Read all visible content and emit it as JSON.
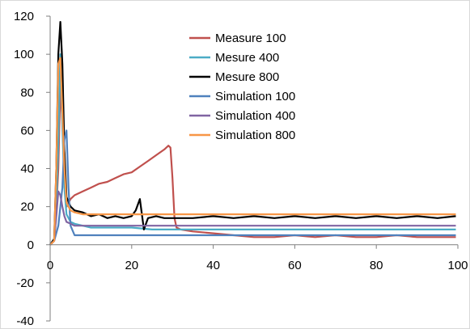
{
  "chart_data": {
    "type": "line",
    "xlim": [
      0,
      100
    ],
    "ylim": [
      -40,
      120
    ],
    "x_ticks": [
      "0",
      "20",
      "40",
      "60",
      "80",
      "100"
    ],
    "y_ticks": [
      "-40",
      "-20",
      "0",
      "20",
      "40",
      "60",
      "80",
      "100",
      "120"
    ],
    "grid": false,
    "legend_position": "inside-top-center",
    "series": [
      {
        "name": "Measure 100",
        "color": "#c0504d",
        "x": [
          0,
          1,
          1.5,
          2,
          2.5,
          3,
          3.5,
          4,
          5,
          6,
          8,
          10,
          12,
          14,
          16,
          18,
          20,
          22,
          24,
          26,
          28,
          29,
          29.5,
          30,
          30.5,
          31,
          32,
          35,
          40,
          45,
          50,
          55,
          60,
          65,
          70,
          75,
          80,
          85,
          90,
          95,
          99.5
        ],
        "y": [
          0,
          3,
          18,
          40,
          83,
          65,
          35,
          20,
          24,
          26,
          28,
          30,
          32,
          33,
          35,
          37,
          38,
          41,
          44,
          47,
          50,
          52,
          51,
          35,
          14,
          9,
          8,
          7,
          6,
          5,
          4,
          4,
          5,
          4,
          5,
          4,
          4,
          5,
          4,
          4,
          4
        ]
      },
      {
        "name": "Mesure 400",
        "color": "#4bacc6",
        "x": [
          0,
          1,
          1.5,
          2,
          2.5,
          3,
          3.5,
          4,
          5,
          6,
          8,
          10,
          15,
          20,
          25,
          30,
          35,
          40,
          45,
          50,
          55,
          60,
          65,
          70,
          75,
          80,
          85,
          90,
          95,
          99.5
        ],
        "y": [
          0,
          3,
          20,
          55,
          100,
          62,
          30,
          16,
          12,
          11,
          10,
          9,
          9,
          9,
          8,
          8,
          8,
          8,
          8,
          8,
          8,
          8,
          8,
          8,
          8,
          8,
          8,
          8,
          8,
          8
        ]
      },
      {
        "name": "Mesure 800",
        "color": "#000000",
        "x": [
          0,
          1,
          1.5,
          2,
          2.5,
          3,
          3.5,
          4,
          5,
          6,
          8,
          10,
          12,
          14,
          16,
          18,
          20,
          21,
          22,
          23,
          24,
          26,
          28,
          30,
          35,
          40,
          45,
          50,
          55,
          60,
          65,
          70,
          75,
          80,
          85,
          90,
          95,
          99.5
        ],
        "y": [
          0,
          3,
          40,
          100,
          117,
          95,
          50,
          25,
          20,
          18,
          17,
          15,
          16,
          14,
          15,
          14,
          15,
          18,
          24,
          8,
          14,
          15,
          14,
          14,
          14,
          15,
          14,
          15,
          14,
          15,
          14,
          15,
          14,
          15,
          14,
          15,
          14,
          15
        ]
      },
      {
        "name": "Simulation 100",
        "color": "#4f81bd",
        "x": [
          0,
          1,
          2,
          3,
          3.5,
          4,
          4.5,
          5,
          6,
          10,
          20,
          30,
          40,
          50,
          60,
          70,
          80,
          90,
          99.5
        ],
        "y": [
          0,
          2,
          10,
          30,
          55,
          60,
          30,
          10,
          5,
          5,
          5,
          5,
          5,
          5,
          5,
          5,
          5,
          5,
          5
        ]
      },
      {
        "name": "Simulation 400",
        "color": "#8064a2",
        "x": [
          0,
          1,
          1.5,
          2,
          2.5,
          3,
          3.5,
          4,
          5,
          6,
          8,
          10,
          20,
          30,
          40,
          50,
          60,
          70,
          80,
          90,
          99.5
        ],
        "y": [
          0,
          2,
          15,
          28,
          26,
          20,
          15,
          12,
          11,
          10,
          10,
          10,
          10,
          10,
          10,
          10,
          10,
          10,
          10,
          10,
          10
        ]
      },
      {
        "name": "Simulation 800",
        "color": "#f79646",
        "x": [
          0,
          1,
          1.5,
          2,
          2.5,
          3,
          3.5,
          4,
          5,
          6,
          8,
          10,
          12,
          15,
          20,
          30,
          40,
          50,
          60,
          70,
          80,
          90,
          99.5
        ],
        "y": [
          0,
          2,
          40,
          95,
          98,
          70,
          40,
          22,
          18,
          17,
          16,
          16,
          16,
          16,
          16,
          16,
          16,
          16,
          16,
          16,
          16,
          16,
          16
        ]
      }
    ]
  }
}
